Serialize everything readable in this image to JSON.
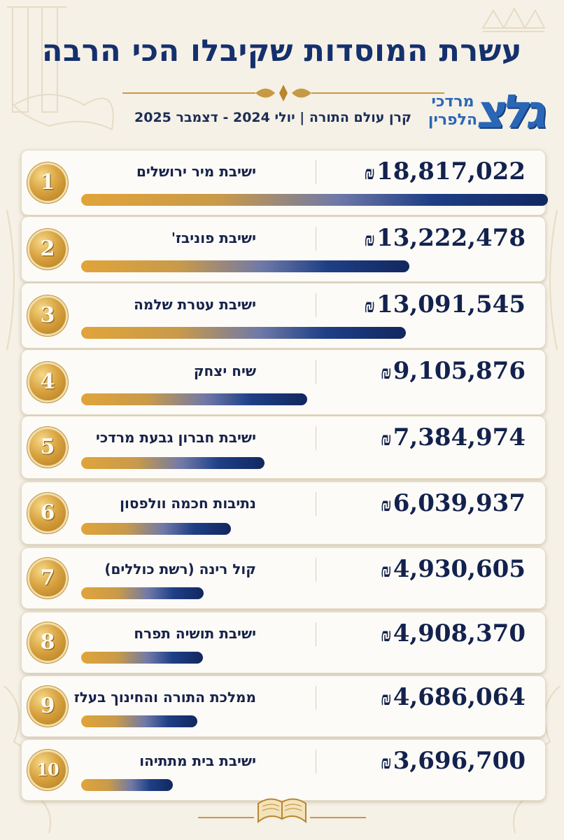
{
  "title": "עשרת המוסדות שקיבלו הכי הרבה",
  "subtitle": "קרן עולם התורה | יולי 2024 - דצמבר 2025",
  "logo": {
    "word": "גלצ",
    "line1": "מרדכי",
    "line2": "הלפרין"
  },
  "currency_symbol": "₪",
  "colors": {
    "title": "#14306d",
    "gold": "#e1a43a",
    "navy": "#12275f",
    "background": "#f6f1e6"
  },
  "chart_data": {
    "type": "bar",
    "orientation": "horizontal",
    "title": "עשרת המוסדות שקיבלו הכי הרבה",
    "subtitle": "קרן עולם התורה | יולי 2024 - דצמבר 2025",
    "xlim": [
      0,
      18817022
    ],
    "grid": false,
    "legend": "none",
    "items": [
      {
        "rank": "1",
        "name": "ישיבת מיר ירושלים",
        "value": 18817022,
        "label": "18,817,022"
      },
      {
        "rank": "2",
        "name": "ישיבת פוניבז'",
        "value": 13222478,
        "label": "13,222,478"
      },
      {
        "rank": "3",
        "name": "ישיבת עטרת שלמה",
        "value": 13091545,
        "label": "13,091,545"
      },
      {
        "rank": "4",
        "name": "שיח יצחק",
        "value": 9105876,
        "label": "9,105,876"
      },
      {
        "rank": "5",
        "name": "ישיבת חברון גבעת מרדכי",
        "value": 7384974,
        "label": "7,384,974"
      },
      {
        "rank": "6",
        "name": "נתיבות חכמה וולפסון",
        "value": 6039937,
        "label": "6,039,937"
      },
      {
        "rank": "7",
        "name": "קול רינה (רשת כוללים)",
        "value": 4930605,
        "label": "4,930,605"
      },
      {
        "rank": "8",
        "name": "ישיבת תושיה תפרח",
        "value": 4908370,
        "label": "4,908,370"
      },
      {
        "rank": "9",
        "name": "ממלכת התורה והחינוך בעלז",
        "value": 4686064,
        "label": "4,686,064"
      },
      {
        "rank": "10",
        "name": "ישיבת בית מתתיהו",
        "value": 3696700,
        "label": "3,696,700"
      }
    ]
  }
}
